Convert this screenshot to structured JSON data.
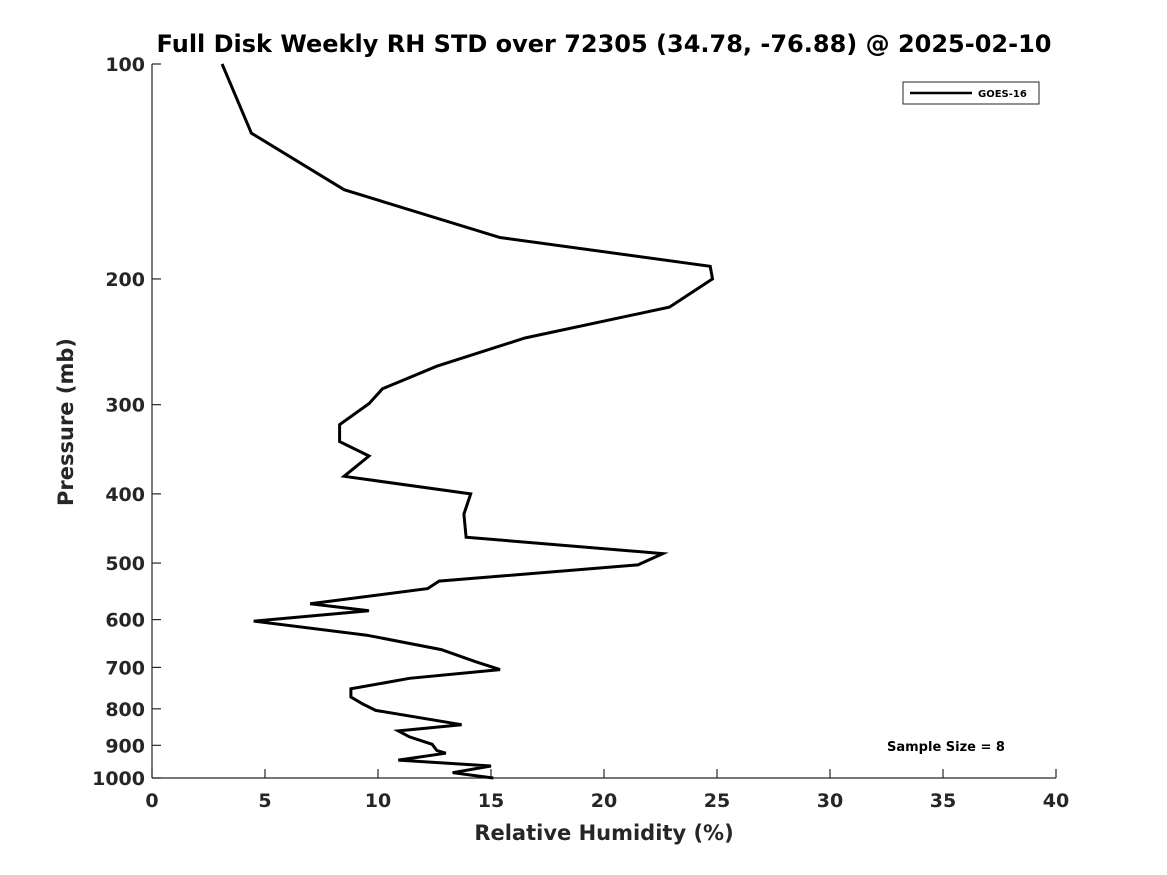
{
  "chart_data": {
    "type": "line",
    "title": "Full Disk Weekly RH STD over 72305 (34.78, -76.88) @ 2025-02-10",
    "xlabel": "Relative Humidity (%)",
    "ylabel": "Pressure (mb)",
    "xlim": [
      0,
      40
    ],
    "ylim": [
      1000,
      100
    ],
    "y_scale": "log",
    "y_reversed": true,
    "x_ticks": [
      0,
      5,
      10,
      15,
      20,
      25,
      30,
      35,
      40
    ],
    "y_ticks": [
      100,
      200,
      300,
      400,
      500,
      600,
      700,
      800,
      900,
      1000
    ],
    "grid": false,
    "legend_position": "top-right",
    "annotation": "Sample Size = 8",
    "series": [
      {
        "name": "GOES-16",
        "color": "#000000",
        "points": [
          [
            3.1,
            100
          ],
          [
            4.4,
            125
          ],
          [
            8.5,
            150
          ],
          [
            15.4,
            175
          ],
          [
            24.7,
            192
          ],
          [
            24.8,
            200
          ],
          [
            22.9,
            219
          ],
          [
            16.5,
            242
          ],
          [
            12.6,
            265
          ],
          [
            10.2,
            285
          ],
          [
            9.6,
            299
          ],
          [
            8.3,
            320
          ],
          [
            8.3,
            338
          ],
          [
            9.6,
            354
          ],
          [
            8.5,
            378
          ],
          [
            14.1,
            400
          ],
          [
            13.8,
            427
          ],
          [
            13.9,
            460
          ],
          [
            22.6,
            485
          ],
          [
            21.5,
            503
          ],
          [
            12.7,
            530
          ],
          [
            12.2,
            543
          ],
          [
            7.0,
            570
          ],
          [
            9.6,
            583
          ],
          [
            4.5,
            603
          ],
          [
            9.5,
            631
          ],
          [
            12.8,
            661
          ],
          [
            14.3,
            687
          ],
          [
            15.4,
            705
          ],
          [
            11.4,
            725
          ],
          [
            8.8,
            750
          ],
          [
            8.8,
            770
          ],
          [
            9.3,
            787
          ],
          [
            9.9,
            804
          ],
          [
            13.7,
            842
          ],
          [
            10.9,
            859
          ],
          [
            11.4,
            876
          ],
          [
            12.4,
            897
          ],
          [
            12.6,
            915
          ],
          [
            13.0,
            923
          ],
          [
            10.9,
            944
          ],
          [
            15.0,
            962
          ],
          [
            13.3,
            983
          ],
          [
            15.1,
            1000
          ]
        ]
      }
    ]
  }
}
